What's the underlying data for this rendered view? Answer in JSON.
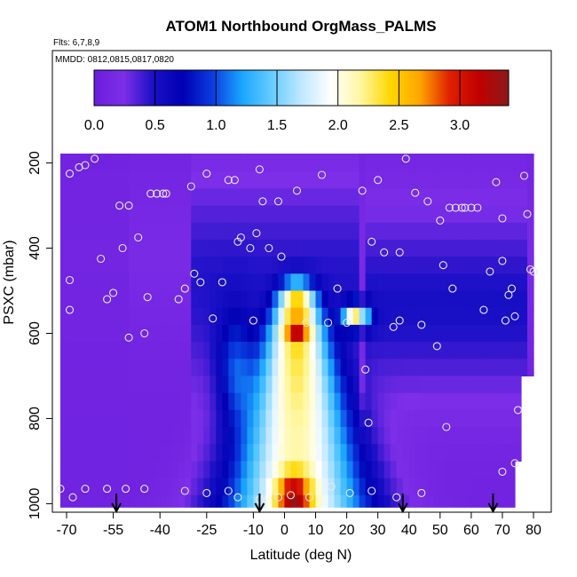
{
  "chart_data": {
    "type": "heatmap",
    "title": "ATOM1 Northbound OrgMass_PALMS",
    "flights_label": "Flts: 6,7,8,9",
    "dates_label": "MMDD: 0812,0815,0817,0820",
    "xlabel": "Latitude (deg N)",
    "ylabel": "PSXC (mbar)",
    "xlim": [
      -70,
      82
    ],
    "ylim": [
      1020,
      130
    ],
    "x_ticks": [
      -70,
      -55,
      -40,
      -25,
      -10,
      0,
      10,
      20,
      30,
      40,
      50,
      60,
      70,
      80
    ],
    "x_tick_labels": [
      "-70",
      "-55",
      "-40",
      "-25",
      "-10",
      "0",
      "10",
      "20",
      "30",
      "40",
      "50",
      "60",
      "70",
      "80"
    ],
    "y_ticks": [
      200,
      400,
      600,
      800,
      1000
    ],
    "y_tick_labels": [
      "200",
      "400",
      "600",
      "800",
      "1000"
    ],
    "colorbar": {
      "range": [
        0,
        3.4
      ],
      "ticks": [
        0.0,
        0.5,
        1.0,
        1.5,
        2.0,
        2.5,
        3.0
      ],
      "tick_labels": [
        "0.0",
        "0.5",
        "1.0",
        "1.5",
        "2.0",
        "2.5",
        "3.0"
      ],
      "colors": [
        "#6a1ddc",
        "#7d2ee8",
        "#1a10c6",
        "#0000b4",
        "#0a3ce0",
        "#1aa6ff",
        "#66ccff",
        "#bfe8ff",
        "#ffffff",
        "#fff7a0",
        "#ffd700",
        "#ffa500",
        "#e02000",
        "#c00000",
        "#8b1a1a"
      ]
    },
    "field": {
      "lat_min": -72,
      "lat_max": 80,
      "lat_step": 2,
      "pressure_levels": [
        160,
        200,
        240,
        280,
        320,
        360,
        400,
        440,
        480,
        520,
        560,
        600,
        640,
        680,
        720,
        760,
        800,
        840,
        880,
        920,
        960,
        1000
      ],
      "description": "tropical enhancement centered near 5N, max at low levels"
    },
    "sample_points": [
      [
        -69,
        225
      ],
      [
        -66,
        210
      ],
      [
        -64,
        205
      ],
      [
        -61,
        190
      ],
      [
        -69,
        475
      ],
      [
        -69,
        545
      ],
      [
        -59,
        425
      ],
      [
        -57,
        520
      ],
      [
        -55,
        505
      ],
      [
        -53,
        300
      ],
      [
        -50,
        300
      ],
      [
        -52,
        400
      ],
      [
        -50,
        610
      ],
      [
        -47,
        375
      ],
      [
        -45,
        600
      ],
      [
        -44,
        515
      ],
      [
        -43,
        272
      ],
      [
        -41,
        272
      ],
      [
        -39,
        272
      ],
      [
        -38,
        272
      ],
      [
        -34,
        520
      ],
      [
        -32,
        495
      ],
      [
        -30,
        255
      ],
      [
        -29,
        460
      ],
      [
        -27,
        480
      ],
      [
        -25,
        225
      ],
      [
        -23,
        565
      ],
      [
        -20,
        480
      ],
      [
        -18,
        240
      ],
      [
        -16,
        240
      ],
      [
        -15,
        385
      ],
      [
        -14,
        375
      ],
      [
        -11,
        400
      ],
      [
        -10,
        570
      ],
      [
        -9,
        365
      ],
      [
        -8,
        215
      ],
      [
        -7,
        290
      ],
      [
        -5,
        400
      ],
      [
        -2,
        290
      ],
      [
        -1,
        420
      ],
      [
        4,
        265
      ],
      [
        7,
        575
      ],
      [
        12,
        228
      ],
      [
        14,
        575
      ],
      [
        17,
        495
      ],
      [
        20,
        575
      ],
      [
        25,
        265
      ],
      [
        28,
        385
      ],
      [
        30,
        240
      ],
      [
        32,
        410
      ],
      [
        35,
        585
      ],
      [
        37,
        410
      ],
      [
        37,
        570
      ],
      [
        39,
        190
      ],
      [
        42,
        270
      ],
      [
        44,
        580
      ],
      [
        46,
        290
      ],
      [
        50,
        335
      ],
      [
        51,
        440
      ],
      [
        53,
        305
      ],
      [
        54,
        495
      ],
      [
        55,
        305
      ],
      [
        57,
        305
      ],
      [
        58,
        305
      ],
      [
        60,
        305
      ],
      [
        62,
        305
      ],
      [
        64,
        545
      ],
      [
        66,
        455
      ],
      [
        68,
        245
      ],
      [
        70,
        330
      ],
      [
        70,
        430
      ],
      [
        71,
        570
      ],
      [
        72,
        510
      ],
      [
        73,
        495
      ],
      [
        74,
        560
      ],
      [
        75,
        780
      ],
      [
        77,
        230
      ],
      [
        78,
        320
      ],
      [
        79,
        450
      ],
      [
        80,
        455
      ],
      [
        -72,
        965
      ],
      [
        -68,
        985
      ],
      [
        -64,
        965
      ],
      [
        -57,
        965
      ],
      [
        -51,
        965
      ],
      [
        -45,
        965
      ],
      [
        -32,
        970
      ],
      [
        -25,
        975
      ],
      [
        -18,
        970
      ],
      [
        -15,
        985
      ],
      [
        -8,
        990
      ],
      [
        -2,
        985
      ],
      [
        2,
        980
      ],
      [
        8,
        985
      ],
      [
        15,
        960
      ],
      [
        21,
        975
      ],
      [
        28,
        970
      ],
      [
        36,
        985
      ],
      [
        44,
        975
      ],
      [
        26,
        685
      ],
      [
        27,
        810
      ],
      [
        52,
        820
      ],
      [
        49,
        630
      ],
      [
        70,
        925
      ],
      [
        74,
        905
      ]
    ],
    "flight_arrows_lat": [
      -54,
      -8,
      38,
      67
    ]
  }
}
